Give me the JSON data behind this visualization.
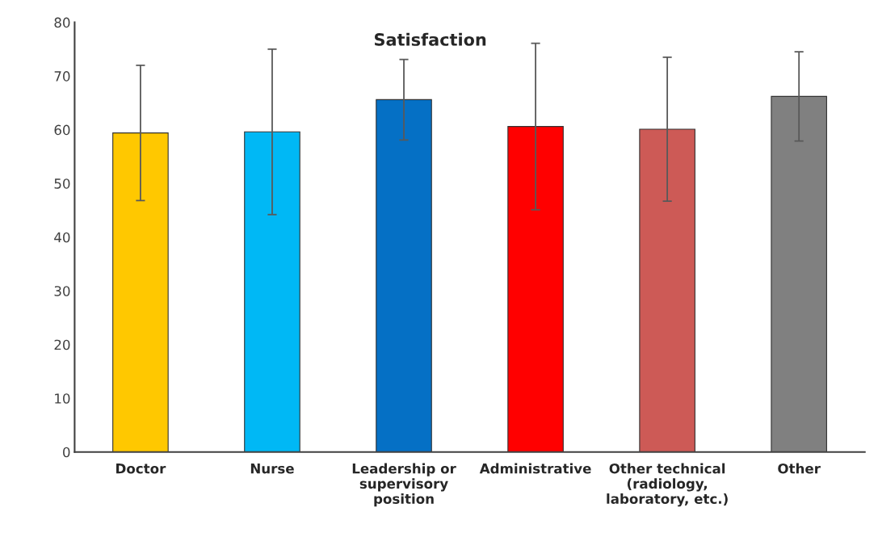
{
  "chart_data": {
    "type": "bar",
    "title": "Satisfaction",
    "categories": [
      "Doctor",
      "Nurse",
      "Leadership or\nsupervisory\nposition",
      "Administrative",
      "Other technical\n(radiology,\nlaboratory, etc.)",
      "Other"
    ],
    "values": [
      59.4,
      59.6,
      65.6,
      60.6,
      60.1,
      66.2
    ],
    "errors": [
      12.6,
      15.4,
      7.5,
      15.5,
      13.4,
      8.3
    ],
    "colors": [
      "#ffc800",
      "#00b8f5",
      "#0570c5",
      "#ff0000",
      "#cd5a56",
      "#808080"
    ],
    "ylim": [
      0,
      80
    ],
    "yticks": [
      0,
      10,
      20,
      30,
      40,
      50,
      60,
      70,
      80
    ],
    "grid": false,
    "legend": false
  }
}
